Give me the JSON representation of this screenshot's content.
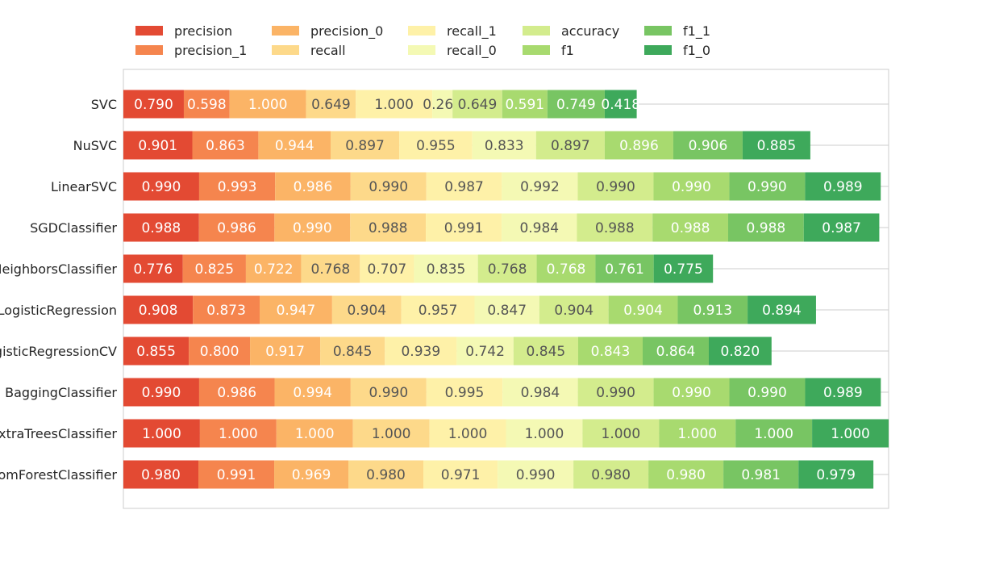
{
  "chart_data": {
    "type": "bar",
    "orientation": "horizontal",
    "stacked": true,
    "grid": true,
    "legend_placement": "top",
    "xlabel": "",
    "ylabel": "",
    "categories": [
      "SVC",
      "NuSVC",
      "LinearSVC",
      "SGDClassifier",
      "KNeighborsClassifier",
      "LogisticRegression",
      "LogisticRegressionCV",
      "BaggingClassifier",
      "ExtraTreesClassifier",
      "RandomForestClassifier"
    ],
    "series": [
      {
        "name": "precision",
        "color": "#e34a33",
        "values": [
          0.79,
          0.901,
          0.99,
          0.988,
          0.776,
          0.908,
          0.855,
          0.99,
          1.0,
          0.98
        ]
      },
      {
        "name": "precision_1",
        "color": "#f5854e",
        "values": [
          0.598,
          0.863,
          0.993,
          0.986,
          0.825,
          0.873,
          0.8,
          0.986,
          1.0,
          0.991
        ]
      },
      {
        "name": "precision_0",
        "color": "#fbb466",
        "values": [
          1.0,
          0.944,
          0.986,
          0.99,
          0.722,
          0.947,
          0.917,
          0.994,
          1.0,
          0.969
        ]
      },
      {
        "name": "recall",
        "color": "#fdd98a",
        "values": [
          0.649,
          0.897,
          0.99,
          0.988,
          0.768,
          0.904,
          0.845,
          0.99,
          1.0,
          0.98
        ]
      },
      {
        "name": "recall_1",
        "color": "#fef1a8",
        "values": [
          1.0,
          0.955,
          0.987,
          0.991,
          0.707,
          0.957,
          0.939,
          0.995,
          1.0,
          0.971
        ]
      },
      {
        "name": "recall_0",
        "color": "#f4f9b4",
        "values": [
          0.264,
          0.833,
          0.992,
          0.984,
          0.835,
          0.847,
          0.742,
          0.984,
          1.0,
          0.99
        ]
      },
      {
        "name": "accuracy",
        "color": "#d3ec8d",
        "values": [
          0.649,
          0.897,
          0.99,
          0.988,
          0.768,
          0.904,
          0.845,
          0.99,
          1.0,
          0.98
        ]
      },
      {
        "name": "f1",
        "color": "#a8da6f",
        "values": [
          0.591,
          0.896,
          0.99,
          0.988,
          0.768,
          0.904,
          0.843,
          0.99,
          1.0,
          0.98
        ]
      },
      {
        "name": "f1_1",
        "color": "#78c563",
        "values": [
          0.749,
          0.906,
          0.99,
          0.988,
          0.761,
          0.913,
          0.864,
          0.99,
          1.0,
          0.981
        ]
      },
      {
        "name": "f1_0",
        "color": "#3ea95b",
        "values": [
          0.418,
          0.885,
          0.989,
          0.987,
          0.775,
          0.894,
          0.82,
          0.989,
          1.0,
          0.979
        ]
      }
    ],
    "xlim": [
      0,
      10.0
    ]
  }
}
